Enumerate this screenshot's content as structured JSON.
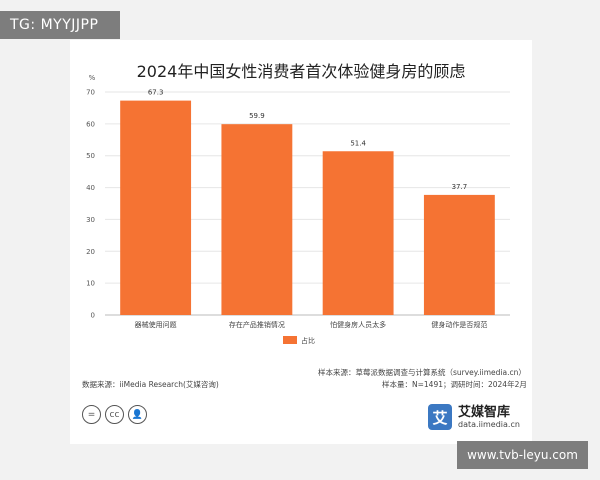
{
  "watermark": "TG: MYYJJPP",
  "site_badge": "www.tvb-leyu.com",
  "chart_data": {
    "type": "bar",
    "title": "2024年中国女性消费者首次体验健身房的顾虑",
    "ylabel": "%",
    "ylim": [
      0,
      70
    ],
    "yticks": [
      "0",
      "10",
      "20",
      "30",
      "40",
      "50",
      "60",
      "70"
    ],
    "categories": [
      "器械使用问题",
      "存在产品推销情况",
      "怕健身房人员太多",
      "健身动作是否规范"
    ],
    "series": [
      {
        "name": "占比",
        "values": [
          67.3,
          59.9,
          51.4,
          37.7
        ],
        "labels": [
          "67.3",
          "59.9",
          "51.4",
          "37.7"
        ]
      }
    ],
    "bar_color": "#f57333",
    "grid": true,
    "legend_position": "bottom-center"
  },
  "footer": {
    "source_sample": "样本来源：草莓派数据调查与计算系统（survey.iimedia.cn）",
    "sample_info": "样本量：N=1491；调研时间：2024年2月",
    "data_source": "数据来源：iiMedia Research(艾媒咨询)"
  },
  "brand": {
    "logo_char": "艾",
    "name": "艾媒智库",
    "site": "data.iimedia.cn"
  },
  "license_icons": [
    {
      "icon": "equals-icon",
      "glyph": "="
    },
    {
      "icon": "cc-icon",
      "glyph": "cc"
    },
    {
      "icon": "person-icon",
      "glyph": "👤"
    }
  ]
}
